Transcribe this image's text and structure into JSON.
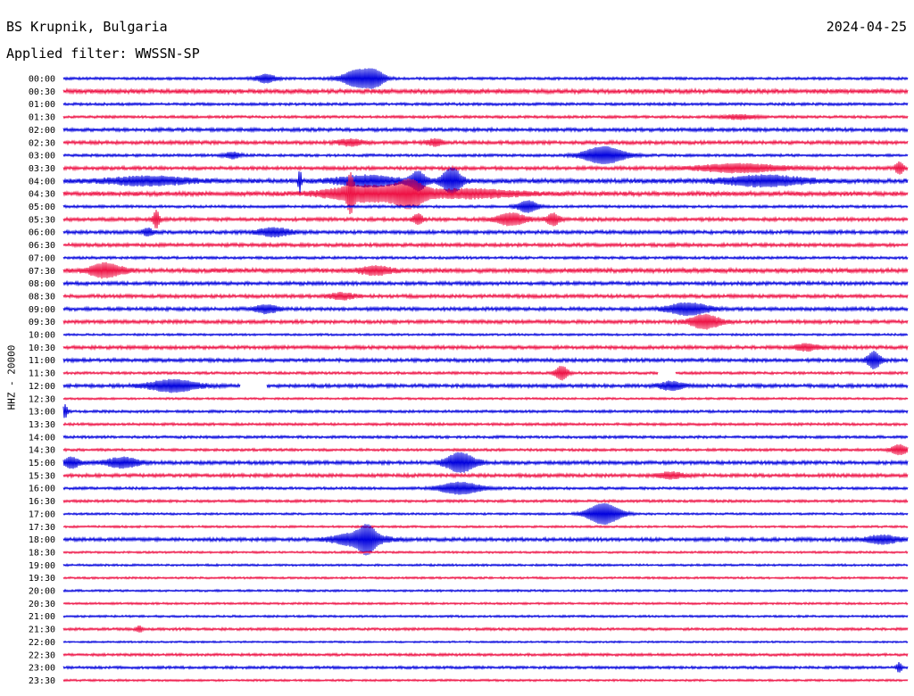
{
  "header": {
    "station": "BS Krupnik, Bulgaria",
    "date": "2024-04-25",
    "filter": "Applied filter: WWSSN-SP"
  },
  "chart_data": {
    "type": "line",
    "ylabel": "HHZ - 20000",
    "colors": [
      "#0000dd",
      "#ee1144"
    ],
    "times": [
      "00:00",
      "00:30",
      "01:00",
      "01:30",
      "02:00",
      "02:30",
      "03:00",
      "03:30",
      "04:00",
      "04:30",
      "05:00",
      "05:30",
      "06:00",
      "06:30",
      "07:00",
      "07:30",
      "08:00",
      "08:30",
      "09:00",
      "09:30",
      "10:00",
      "10:30",
      "11:00",
      "11:30",
      "12:00",
      "12:30",
      "13:00",
      "13:30",
      "14:00",
      "14:30",
      "15:00",
      "15:30",
      "16:00",
      "16:30",
      "17:00",
      "17:30",
      "18:00",
      "18:30",
      "19:00",
      "19:30",
      "20:00",
      "20:30",
      "21:00",
      "21:30",
      "22:00",
      "22:30",
      "23:00",
      "23:30"
    ],
    "noise": [
      1.5,
      2.5,
      1.5,
      1.5,
      2,
      2,
      1.5,
      2,
      2.5,
      2.5,
      1.5,
      2,
      2,
      2,
      1.5,
      2.5,
      2,
      2,
      2,
      2,
      1.2,
      2,
      2,
      1.5,
      2,
      1.2,
      1.5,
      1.5,
      1.5,
      1.5,
      2,
      2,
      1.5,
      1.5,
      1.2,
      1.2,
      2,
      1.2,
      1.2,
      1.2,
      1.2,
      1.2,
      1.2,
      1.5,
      1,
      1.5,
      1.5,
      1.2
    ],
    "events": [
      {
        "row": 0,
        "pos": 0.24,
        "amp": 4,
        "width": 0.012
      },
      {
        "row": 0,
        "pos": 0.35,
        "amp": 9,
        "width": 0.02
      },
      {
        "row": 0,
        "pos": 0.37,
        "amp": 6,
        "width": 0.012
      },
      {
        "row": 3,
        "pos": 0.8,
        "amp": 2,
        "width": 0.02
      },
      {
        "row": 5,
        "pos": 0.34,
        "amp": 3,
        "width": 0.015
      },
      {
        "row": 5,
        "pos": 0.44,
        "amp": 3,
        "width": 0.01
      },
      {
        "row": 6,
        "pos": 0.2,
        "amp": 3,
        "width": 0.01
      },
      {
        "row": 6,
        "pos": 0.64,
        "amp": 9,
        "width": 0.025
      },
      {
        "row": 7,
        "pos": 0.8,
        "amp": 4,
        "width": 0.05
      },
      {
        "row": 7,
        "pos": 0.99,
        "amp": 6,
        "width": 0.005
      },
      {
        "row": 8,
        "pos": 0.1,
        "amp": 4,
        "width": 0.05
      },
      {
        "row": 8,
        "pos": 0.28,
        "amp": 12,
        "width": 0.002
      },
      {
        "row": 8,
        "pos": 0.36,
        "amp": 5,
        "width": 0.04
      },
      {
        "row": 8,
        "pos": 0.42,
        "amp": 9,
        "width": 0.01
      },
      {
        "row": 8,
        "pos": 0.46,
        "amp": 13,
        "width": 0.012
      },
      {
        "row": 8,
        "pos": 0.83,
        "amp": 5,
        "width": 0.05
      },
      {
        "row": 9,
        "pos": 0.34,
        "amp": 15,
        "width": 0.004
      },
      {
        "row": 9,
        "pos": 0.36,
        "amp": 8,
        "width": 0.05
      },
      {
        "row": 9,
        "pos": 0.41,
        "amp": 11,
        "width": 0.018
      },
      {
        "row": 9,
        "pos": 0.48,
        "amp": 4,
        "width": 0.06
      },
      {
        "row": 10,
        "pos": 0.55,
        "amp": 6,
        "width": 0.012
      },
      {
        "row": 11,
        "pos": 0.11,
        "amp": 9,
        "width": 0.004
      },
      {
        "row": 11,
        "pos": 0.42,
        "amp": 5,
        "width": 0.006
      },
      {
        "row": 11,
        "pos": 0.53,
        "amp": 6,
        "width": 0.018
      },
      {
        "row": 11,
        "pos": 0.58,
        "amp": 6,
        "width": 0.008
      },
      {
        "row": 12,
        "pos": 0.1,
        "amp": 4,
        "width": 0.006
      },
      {
        "row": 12,
        "pos": 0.25,
        "amp": 4,
        "width": 0.02
      },
      {
        "row": 15,
        "pos": 0.05,
        "amp": 7,
        "width": 0.02
      },
      {
        "row": 15,
        "pos": 0.37,
        "amp": 4,
        "width": 0.02
      },
      {
        "row": 17,
        "pos": 0.33,
        "amp": 3,
        "width": 0.015
      },
      {
        "row": 18,
        "pos": 0.24,
        "amp": 4,
        "width": 0.015
      },
      {
        "row": 18,
        "pos": 0.74,
        "amp": 6,
        "width": 0.025
      },
      {
        "row": 19,
        "pos": 0.76,
        "amp": 7,
        "width": 0.018
      },
      {
        "row": 21,
        "pos": 0.88,
        "amp": 3,
        "width": 0.015
      },
      {
        "row": 22,
        "pos": 0.96,
        "amp": 9,
        "width": 0.008
      },
      {
        "row": 23,
        "pos": 0.59,
        "amp": 7,
        "width": 0.008
      },
      {
        "row": 24,
        "pos": 0.13,
        "amp": 6,
        "width": 0.03
      },
      {
        "row": 24,
        "pos": 0.72,
        "amp": 4,
        "width": 0.015
      },
      {
        "row": 26,
        "pos": 0.002,
        "amp": 7,
        "width": 0.003
      },
      {
        "row": 29,
        "pos": 0.99,
        "amp": 5,
        "width": 0.01
      },
      {
        "row": 30,
        "pos": 0.01,
        "amp": 5,
        "width": 0.01
      },
      {
        "row": 30,
        "pos": 0.07,
        "amp": 5,
        "width": 0.02
      },
      {
        "row": 30,
        "pos": 0.47,
        "amp": 10,
        "width": 0.018
      },
      {
        "row": 31,
        "pos": 0.72,
        "amp": 3,
        "width": 0.015
      },
      {
        "row": 32,
        "pos": 0.47,
        "amp": 6,
        "width": 0.025
      },
      {
        "row": 34,
        "pos": 0.64,
        "amp": 11,
        "width": 0.02
      },
      {
        "row": 36,
        "pos": 0.35,
        "amp": 7,
        "width": 0.03
      },
      {
        "row": 36,
        "pos": 0.36,
        "amp": 10,
        "width": 0.01
      },
      {
        "row": 36,
        "pos": 0.97,
        "amp": 4,
        "width": 0.02
      },
      {
        "row": 43,
        "pos": 0.09,
        "amp": 3,
        "width": 0.004
      },
      {
        "row": 46,
        "pos": 0.99,
        "amp": 5,
        "width": 0.003
      }
    ],
    "gaps": [
      {
        "row": 23,
        "start": 0.705,
        "end": 0.725
      },
      {
        "row": 24,
        "start": 0.21,
        "end": 0.24
      }
    ]
  }
}
